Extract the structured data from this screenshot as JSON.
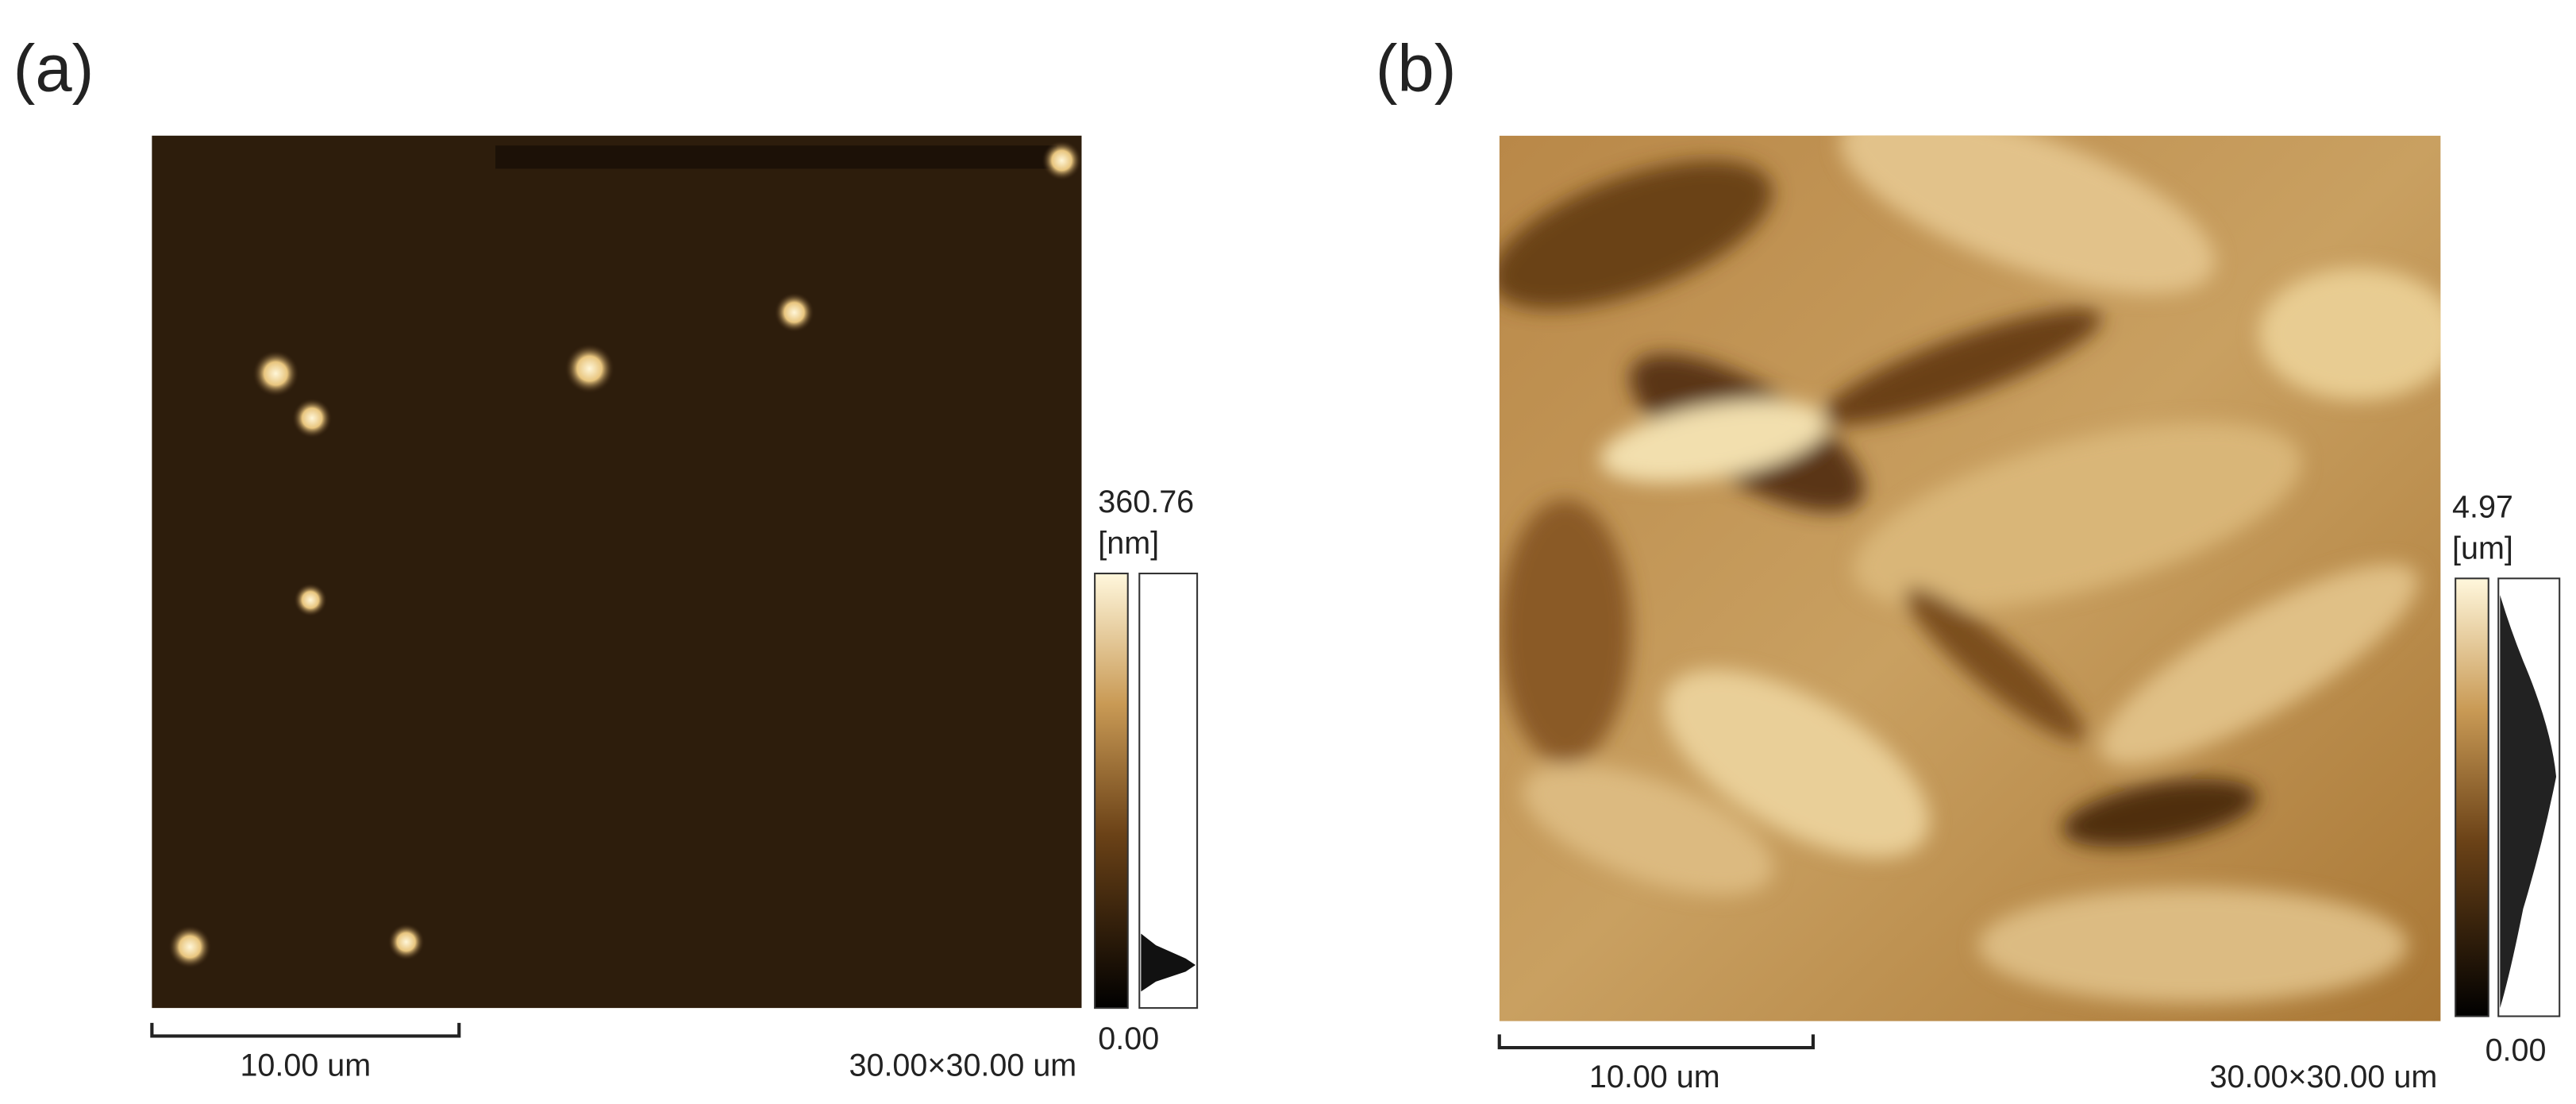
{
  "panels": [
    {
      "label": "(a)",
      "scale_bar": "10.00 um",
      "scan_size": "30.00×30.00 um",
      "colorbar": {
        "max": "360.76",
        "unit": "[nm]",
        "min": "0.00"
      }
    },
    {
      "label": "(b)",
      "scale_bar": "10.00 um",
      "scan_size": "30.00×30.00 um",
      "colorbar": {
        "max": "4.97",
        "unit": "[um]",
        "min": "0.00"
      }
    }
  ]
}
